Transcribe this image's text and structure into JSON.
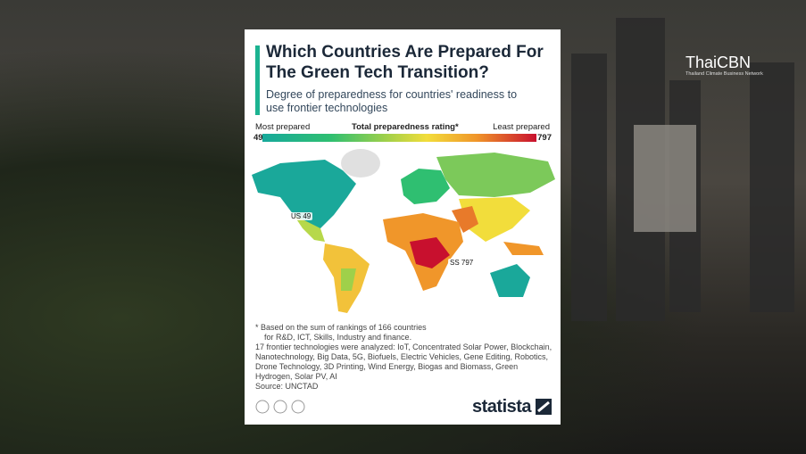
{
  "brand": "ThaiCBN",
  "brand_tagline": "Thailand Climate Business Network",
  "card": {
    "title": "Which Countries Are Prepared For The Green Tech Transition?",
    "subtitle": "Degree of preparedness for countries' readiness to use frontier technologies",
    "scale": {
      "low_label": "Most prepared",
      "title": "Total preparedness rating*",
      "high_label": "Least prepared",
      "min": 49,
      "max": 797
    },
    "markers": [
      {
        "code": "US",
        "value": 49
      },
      {
        "code": "SS",
        "value": 797
      }
    ],
    "footnotes": [
      "* Based on the sum of rankings of 166 countries",
      "for R&D, ICT, Skills, Industry and finance.",
      "17 frontier technologies were analyzed: IoT, Concentrated Solar Power, Blockchain, Nanotechnology, Big Data, 5G, Biofuels, Electric Vehicles, Gene Editing, Robotics, Drone Technology, 3D Printing, Wind Energy, Biogas and Biomass, Green Hydrogen, Solar PV, AI"
    ],
    "source": "Source: UNCTAD",
    "logo": "statista"
  }
}
